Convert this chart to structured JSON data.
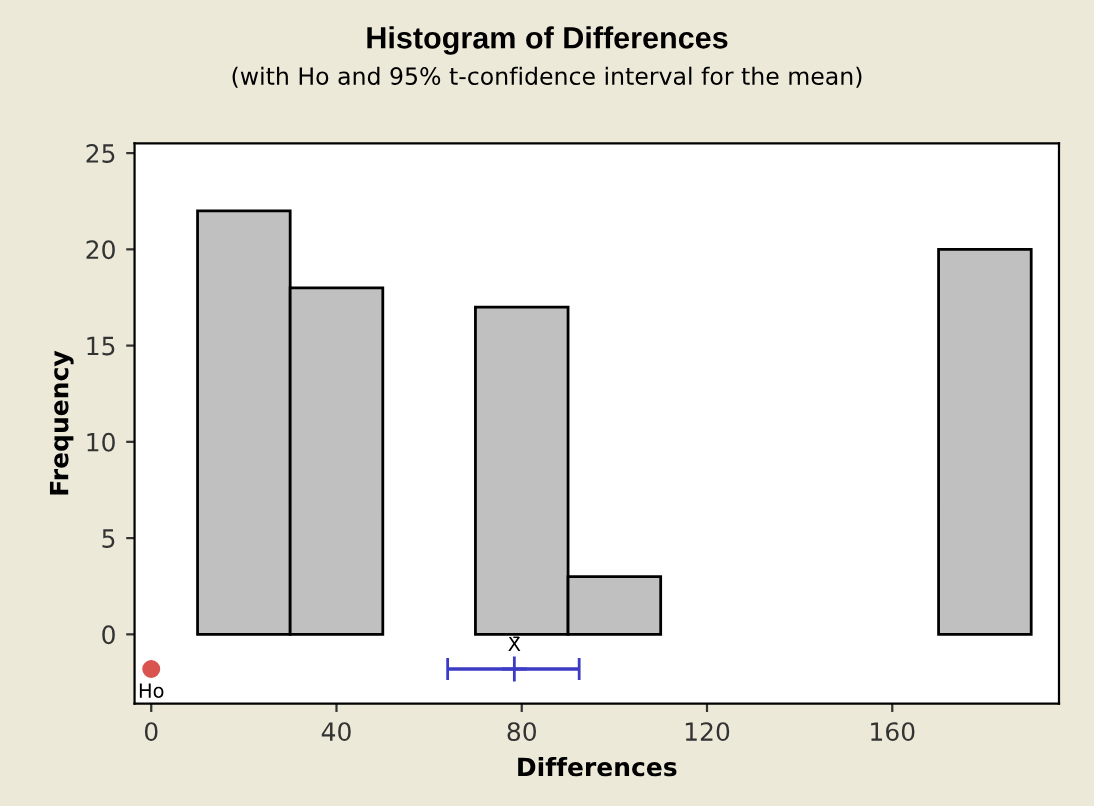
{
  "chart_data": {
    "type": "histogram",
    "title": "Histogram of Differences",
    "subtitle": "(with Ho and 95% t-confidence interval for the mean)",
    "xlabel": "Differences",
    "ylabel": "Frequency",
    "series": [
      {
        "bins": [
          10,
          30,
          50,
          70,
          90,
          110,
          130,
          150,
          170,
          190
        ],
        "values": [
          22,
          18,
          0,
          17,
          3,
          0,
          0,
          0,
          20
        ],
        "color": "#c0c0c0"
      },
      {
        "type": "scatter",
        "x": [
          0
        ],
        "values": [
          -1.8
        ],
        "color": "#d9534f",
        "marker": "circle"
      },
      {
        "type": "scatter",
        "x": [
          78.4
        ],
        "values": [
          -1.8
        ],
        "xerrors": [
          [
            64,
            92.4
          ]
        ],
        "color": "#3b3bc4",
        "marker": "cross"
      }
    ],
    "annotations": [
      {
        "text": "Ho",
        "x": 0,
        "y": -1.8
      },
      {
        "text": "X̄",
        "x": 78.4,
        "y": -1.8
      }
    ],
    "xlim": [
      -3.6,
      196
    ],
    "ylim": [
      -3.6,
      25.5
    ],
    "xticks": [
      0,
      40,
      80,
      120,
      160
    ],
    "yticks": [
      0,
      5,
      10,
      15,
      20,
      25
    ],
    "grid": false,
    "legend": false
  }
}
